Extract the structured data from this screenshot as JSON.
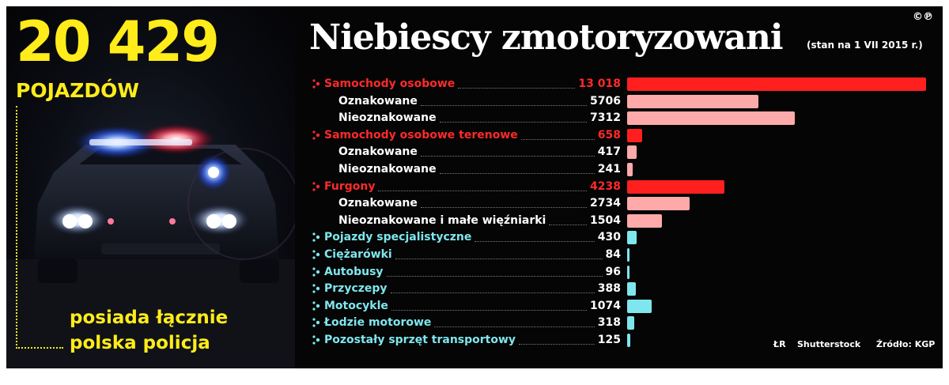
{
  "headline": {
    "total": "20 429",
    "unit": "POJAZDÓW",
    "caption_line1": "posiada łącznie",
    "caption_line2": "polska policja"
  },
  "copyright": "©℗",
  "colors": {
    "yellow": "#ffec1a",
    "category_red": "#ff1f1f",
    "category_red_text": "#ff2a2a",
    "sub_pink": "#ffaaaa",
    "other_cyan": "#7fe6ee",
    "background": "#050505"
  },
  "chart_data": {
    "type": "bar",
    "orientation": "horizontal",
    "title": "Niebiescy zmotoryzowani",
    "subtitle": "(stan na 1 VII 2015 r.)",
    "xmax": 13018,
    "rows": [
      {
        "label": "Samochody osobowe",
        "display": "13 018",
        "value": 13018,
        "kind": "category"
      },
      {
        "label": "Oznakowane",
        "display": "5706",
        "value": 5706,
        "kind": "sub"
      },
      {
        "label": "Nieoznakowane",
        "display": "7312",
        "value": 7312,
        "kind": "sub"
      },
      {
        "label": "Samochody osobowe terenowe",
        "display": "658",
        "value": 658,
        "kind": "category"
      },
      {
        "label": "Oznakowane",
        "display": "417",
        "value": 417,
        "kind": "sub"
      },
      {
        "label": "Nieoznakowane",
        "display": "241",
        "value": 241,
        "kind": "sub"
      },
      {
        "label": "Furgony",
        "display": "4238",
        "value": 4238,
        "kind": "category"
      },
      {
        "label": "Oznakowane",
        "display": "2734",
        "value": 2734,
        "kind": "sub"
      },
      {
        "label": "Nieoznakowane i małe więźniarki",
        "display": "1504",
        "value": 1504,
        "kind": "sub"
      },
      {
        "label": "Pojazdy specjalistyczne",
        "display": "430",
        "value": 430,
        "kind": "other"
      },
      {
        "label": "Ciężarówki",
        "display": "84",
        "value": 84,
        "kind": "other"
      },
      {
        "label": "Autobusy",
        "display": "96",
        "value": 96,
        "kind": "other"
      },
      {
        "label": "Przyczepy",
        "display": "388",
        "value": 388,
        "kind": "other"
      },
      {
        "label": "Motocykle",
        "display": "1074",
        "value": 1074,
        "kind": "other"
      },
      {
        "label": "Łodzie motorowe",
        "display": "318",
        "value": 318,
        "kind": "other"
      },
      {
        "label": "Pozostały sprzęt transportowy",
        "display": "125",
        "value": 125,
        "kind": "other"
      }
    ]
  },
  "credits": {
    "author": "ŁR",
    "photo": "Shutterstock",
    "source": "Źródło: KGP"
  }
}
